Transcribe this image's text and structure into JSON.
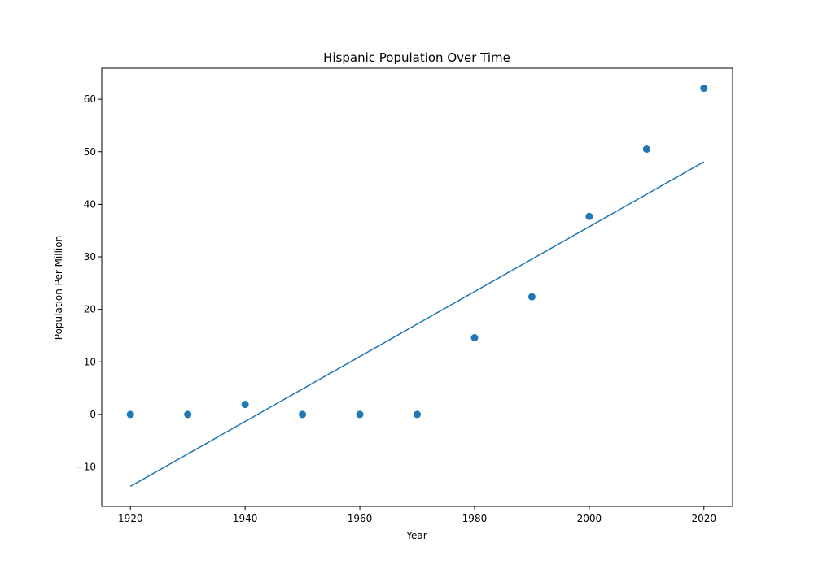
{
  "chart_data": {
    "type": "scatter",
    "title": "Hispanic Population Over Time",
    "xlabel": "Year",
    "ylabel": "Population Per Million",
    "xlim": [
      1915,
      2025
    ],
    "ylim": [
      -17.5,
      65.9
    ],
    "xticks": [
      1920,
      1940,
      1960,
      1980,
      2000,
      2020
    ],
    "yticks": [
      -10,
      0,
      10,
      20,
      30,
      40,
      50,
      60
    ],
    "grid": false,
    "points": {
      "x": [
        1920,
        1930,
        1940,
        1950,
        1960,
        1970,
        1980,
        1990,
        2000,
        2010,
        2020
      ],
      "y": [
        0,
        0,
        1.9,
        0,
        0,
        0,
        14.6,
        22.4,
        37.7,
        50.5,
        62.1
      ]
    },
    "fit_line": {
      "x": [
        1920,
        2020
      ],
      "y": [
        -13.7,
        48.1
      ]
    },
    "color": "#1f77b4"
  }
}
